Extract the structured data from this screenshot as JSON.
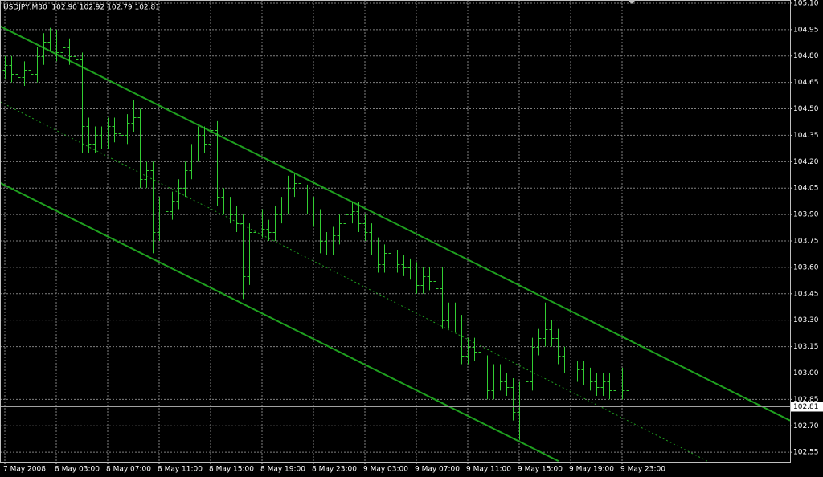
{
  "chart_data": {
    "type": "ohlc",
    "title": "USDJPY,M30  102.90 102.92 102.79 102.81",
    "color": "#32cd32",
    "grid": true,
    "x": [
      0,
      1,
      2,
      3,
      4,
      5,
      6,
      7,
      8,
      9,
      10,
      11,
      12,
      13,
      14,
      15,
      16,
      17,
      18,
      19,
      20,
      21,
      22,
      23,
      24,
      25,
      26,
      27,
      28,
      29,
      30,
      31,
      32,
      33,
      34,
      35,
      36,
      37,
      38,
      39,
      40,
      41,
      42,
      43,
      44,
      45,
      46,
      47,
      48,
      49,
      50,
      51,
      52,
      53,
      54,
      55,
      56,
      57,
      58,
      59,
      60,
      61,
      62,
      63,
      64,
      65,
      66,
      67,
      68,
      69,
      70,
      71,
      72,
      73,
      74,
      75,
      76,
      77,
      78,
      79,
      80,
      81,
      82,
      83,
      84,
      85,
      86,
      87,
      88,
      89,
      90,
      91,
      92,
      93,
      94,
      95,
      96,
      97
    ],
    "open": [
      104.72,
      104.75,
      104.7,
      104.68,
      104.72,
      104.7,
      104.8,
      104.88,
      104.9,
      104.82,
      104.85,
      104.8,
      104.78,
      104.4,
      104.3,
      104.35,
      104.32,
      104.4,
      104.36,
      104.35,
      104.42,
      104.45,
      104.1,
      104.15,
      103.8,
      103.95,
      103.92,
      103.98,
      104.05,
      104.15,
      104.25,
      104.35,
      104.3,
      104.38,
      104.0,
      103.95,
      103.9,
      103.85,
      103.55,
      103.8,
      103.88,
      103.82,
      103.8,
      103.9,
      103.95,
      104.05,
      104.08,
      104.02,
      103.95,
      103.88,
      103.75,
      103.72,
      103.78,
      103.85,
      103.9,
      103.92,
      103.85,
      103.8,
      103.72,
      103.62,
      103.68,
      103.65,
      103.62,
      103.6,
      103.58,
      103.5,
      103.55,
      103.52,
      103.48,
      103.3,
      103.35,
      103.28,
      103.1,
      103.15,
      103.12,
      103.05,
      102.9,
      103.0,
      102.95,
      102.92,
      102.78,
      102.68,
      102.95,
      103.15,
      103.2,
      103.25,
      103.2,
      103.1,
      103.05,
      103.0,
      103.02,
      102.98,
      102.95,
      102.92,
      102.95,
      102.9,
      102.98,
      102.9
    ],
    "high": [
      104.8,
      104.8,
      104.75,
      104.77,
      104.77,
      104.85,
      104.93,
      104.96,
      104.95,
      104.9,
      104.9,
      104.85,
      104.82,
      104.45,
      104.4,
      104.4,
      104.45,
      104.45,
      104.41,
      104.47,
      104.55,
      104.5,
      104.2,
      104.2,
      104.0,
      104.0,
      104.03,
      104.1,
      104.2,
      104.3,
      104.4,
      104.4,
      104.42,
      104.43,
      104.05,
      104.0,
      103.95,
      103.9,
      103.85,
      103.93,
      103.93,
      103.87,
      103.95,
      104.0,
      104.12,
      104.13,
      104.13,
      104.07,
      104.0,
      103.93,
      103.8,
      103.83,
      103.9,
      103.95,
      103.97,
      103.97,
      103.9,
      103.85,
      103.77,
      103.73,
      103.73,
      103.7,
      103.67,
      103.65,
      103.63,
      103.6,
      103.6,
      103.57,
      103.6,
      103.4,
      103.4,
      103.33,
      103.2,
      103.2,
      103.17,
      103.1,
      103.05,
      103.05,
      103.0,
      102.97,
      102.95,
      103.0,
      103.2,
      103.25,
      103.4,
      103.3,
      103.25,
      103.15,
      103.1,
      103.07,
      103.07,
      103.03,
      103.0,
      103.0,
      103.0,
      103.05,
      103.03,
      102.92
    ],
    "low": [
      104.67,
      104.65,
      104.63,
      104.63,
      104.65,
      104.65,
      104.75,
      104.83,
      104.77,
      104.77,
      104.75,
      104.73,
      104.25,
      104.25,
      104.25,
      104.27,
      104.27,
      104.31,
      104.3,
      104.3,
      104.37,
      104.05,
      104.05,
      103.68,
      103.75,
      103.87,
      103.87,
      103.93,
      104.0,
      104.1,
      104.2,
      104.25,
      104.25,
      103.95,
      103.9,
      103.85,
      103.8,
      103.42,
      103.5,
      103.75,
      103.77,
      103.75,
      103.75,
      103.85,
      103.9,
      104.0,
      103.97,
      103.9,
      103.83,
      103.68,
      103.67,
      103.67,
      103.73,
      103.8,
      103.85,
      103.8,
      103.75,
      103.67,
      103.57,
      103.57,
      103.6,
      103.57,
      103.55,
      103.53,
      103.45,
      103.45,
      103.47,
      103.43,
      103.25,
      103.25,
      103.23,
      103.05,
      103.05,
      103.07,
      103.0,
      102.85,
      102.85,
      102.9,
      102.87,
      102.73,
      102.62,
      102.63,
      102.9,
      103.1,
      103.15,
      103.15,
      103.05,
      103.0,
      102.95,
      102.95,
      102.93,
      102.9,
      102.87,
      102.87,
      102.85,
      102.85,
      102.85,
      102.79
    ],
    "close": [
      104.75,
      104.7,
      104.68,
      104.72,
      104.7,
      104.8,
      104.88,
      104.9,
      104.82,
      104.85,
      104.8,
      104.78,
      104.4,
      104.3,
      104.35,
      104.32,
      104.4,
      104.36,
      104.35,
      104.42,
      104.45,
      104.1,
      104.15,
      103.8,
      103.95,
      103.92,
      103.98,
      104.05,
      104.15,
      104.25,
      104.35,
      104.3,
      104.38,
      104.0,
      103.95,
      103.9,
      103.85,
      103.55,
      103.8,
      103.88,
      103.82,
      103.8,
      103.9,
      103.95,
      104.05,
      104.08,
      104.02,
      103.95,
      103.88,
      103.75,
      103.72,
      103.78,
      103.85,
      103.9,
      103.92,
      103.85,
      103.8,
      103.72,
      103.62,
      103.68,
      103.65,
      103.62,
      103.6,
      103.58,
      103.5,
      103.55,
      103.52,
      103.48,
      103.3,
      103.35,
      103.28,
      103.1,
      103.15,
      103.12,
      103.05,
      102.9,
      103.0,
      102.95,
      102.92,
      102.78,
      102.68,
      102.95,
      103.15,
      103.2,
      103.25,
      103.2,
      103.1,
      103.05,
      103.0,
      103.02,
      102.98,
      102.95,
      102.92,
      102.95,
      102.9,
      102.98,
      102.9,
      102.81
    ],
    "bid": 102.81,
    "channel_color": "#1fa01f",
    "channel_lines": [
      {
        "style": "solid",
        "x": [
          -0.75,
          122.125
        ],
        "y": [
          104.97,
          102.73
        ]
      },
      {
        "style": "dotted",
        "x": [
          -0.75,
          109.25
        ],
        "y": [
          104.54,
          102.5
        ]
      },
      {
        "style": "solid",
        "x": [
          -0.75,
          86.1
        ],
        "y": [
          104.08,
          102.5
        ]
      }
    ],
    "xlim": [
      -0.75,
      122.125
    ],
    "xticks": [
      {
        "value": 0,
        "label": "7 May 2008"
      },
      {
        "value": 8,
        "label": "8 May 03:00"
      },
      {
        "value": 16,
        "label": "8 May 07:00"
      },
      {
        "value": 24,
        "label": "8 May 11:00"
      },
      {
        "value": 32,
        "label": "8 May 15:00"
      },
      {
        "value": 40,
        "label": "8 May 19:00"
      },
      {
        "value": 48,
        "label": "8 May 23:00"
      },
      {
        "value": 56,
        "label": "9 May 03:00"
      },
      {
        "value": 64,
        "label": "9 May 07:00"
      },
      {
        "value": 72,
        "label": "9 May 11:00"
      },
      {
        "value": 80,
        "label": "9 May 15:00"
      },
      {
        "value": 88,
        "label": "9 May 19:00"
      },
      {
        "value": 96,
        "label": "9 May 23:00"
      }
    ],
    "ylim": [
      102.496,
      105.118
    ],
    "yticks": [
      {
        "value": 105.1,
        "label": "105.10"
      },
      104.95,
      {
        "value": 104.8,
        "label": "104.80"
      },
      104.65,
      {
        "value": 104.5,
        "label": "104.50"
      },
      104.35,
      {
        "value": 104.2,
        "label": "104.20"
      },
      104.05,
      {
        "value": 103.9,
        "label": "103.90"
      },
      103.75,
      {
        "value": 103.6,
        "label": "103.60"
      },
      103.45,
      {
        "value": 103.3,
        "label": "103.30"
      },
      103.15,
      {
        "value": 103.0,
        "label": "103.00"
      },
      102.85,
      {
        "value": 102.7,
        "label": "102.70"
      },
      102.55
    ]
  }
}
